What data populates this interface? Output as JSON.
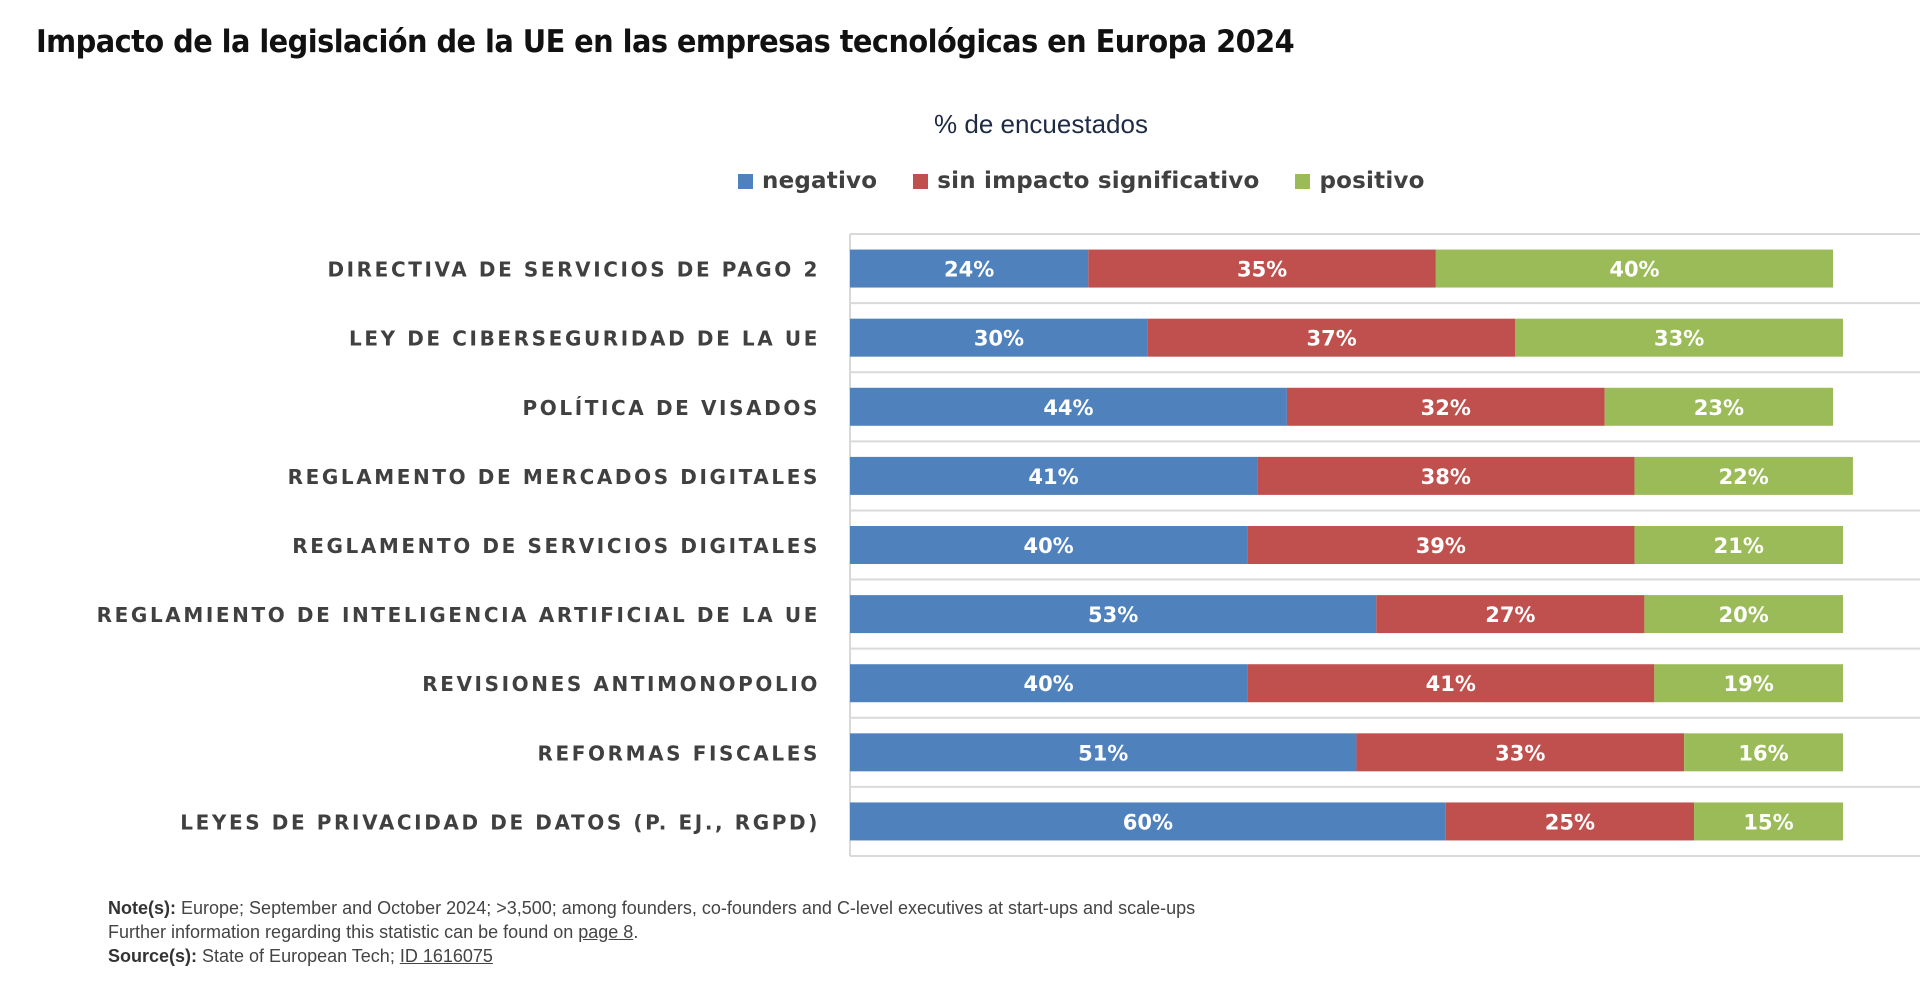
{
  "chart_data": {
    "type": "bar",
    "orientation": "horizontal",
    "stacked": true,
    "title": "Impacto de la legislación de la UE en las empresas tecnológicas en Europa 2024",
    "subtitle": "% de encuestados",
    "xlabel": "",
    "ylabel": "",
    "xlim": [
      0,
      100
    ],
    "grid": true,
    "legend_position": "top-center",
    "categories": [
      "DIRECTIVA DE SERVICIOS DE PAGO 2",
      "LEY DE CIBERSEGURIDAD DE LA UE",
      "POLÍTICA DE VISADOS",
      "REGLAMENTO DE MERCADOS DIGITALES",
      "REGLAMENTO DE SERVICIOS DIGITALES",
      "REGLAMIENTO DE INTELIGENCIA ARTIFICIAL DE LA UE",
      "REVISIONES ANTIMONOPOLIO",
      "REFORMAS FISCALES",
      "LEYES DE PRIVACIDAD DE DATOS (P. EJ., RGPD)"
    ],
    "series": [
      {
        "name": "negativo",
        "color": "#4F81BD",
        "values": [
          24,
          30,
          44,
          41,
          40,
          53,
          40,
          51,
          60
        ]
      },
      {
        "name": "sin impacto significativo",
        "color": "#C0504D",
        "values": [
          35,
          37,
          32,
          38,
          39,
          27,
          41,
          33,
          25
        ]
      },
      {
        "name": "positivo",
        "color": "#9BBB59",
        "values": [
          40,
          33,
          23,
          22,
          21,
          20,
          19,
          16,
          15
        ]
      }
    ],
    "value_suffix": "%"
  },
  "notes": {
    "note_label": "Note(s):",
    "note_text": " Europe; September and October 2024; >3,500; among founders, co-founders and C-level executives at start-ups and scale-ups",
    "further_text": "Further information regarding this statistic can be found on ",
    "further_link": "page 8",
    "further_end": ".",
    "source_label": "Source(s):",
    "source_text": " State of European Tech; ",
    "source_link": "ID 1616075"
  }
}
